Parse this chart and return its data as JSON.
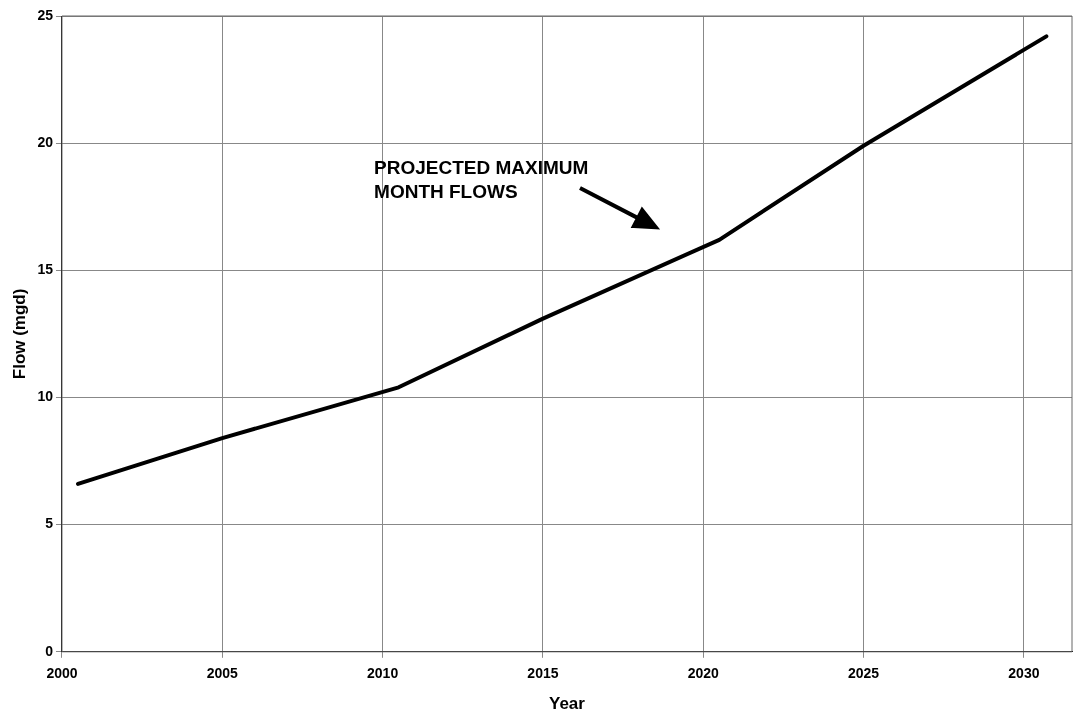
{
  "chart_data": {
    "type": "line",
    "xlabel": "Year",
    "ylabel": "Flow (mgd)",
    "x": [
      2000.5,
      2005,
      2010.5,
      2015,
      2020.5,
      2025,
      2030.7
    ],
    "series": [
      {
        "color": "#000000",
        "values": [
          6.6,
          8.4,
          10.4,
          13.1,
          16.2,
          19.9,
          24.2
        ]
      }
    ],
    "xlim": [
      2000,
      2031.5
    ],
    "xticks": [
      2000,
      2005,
      2010,
      2015,
      2020,
      2025,
      2030
    ],
    "ylim": [
      0,
      25
    ],
    "yticks": [
      0,
      5,
      10,
      15,
      20,
      25
    ],
    "grid": true,
    "legend": false,
    "marker": "none",
    "line_style": "solid",
    "annotations": [
      "PROJECTED MAXIMUM\nMONTH FLOWS"
    ]
  }
}
